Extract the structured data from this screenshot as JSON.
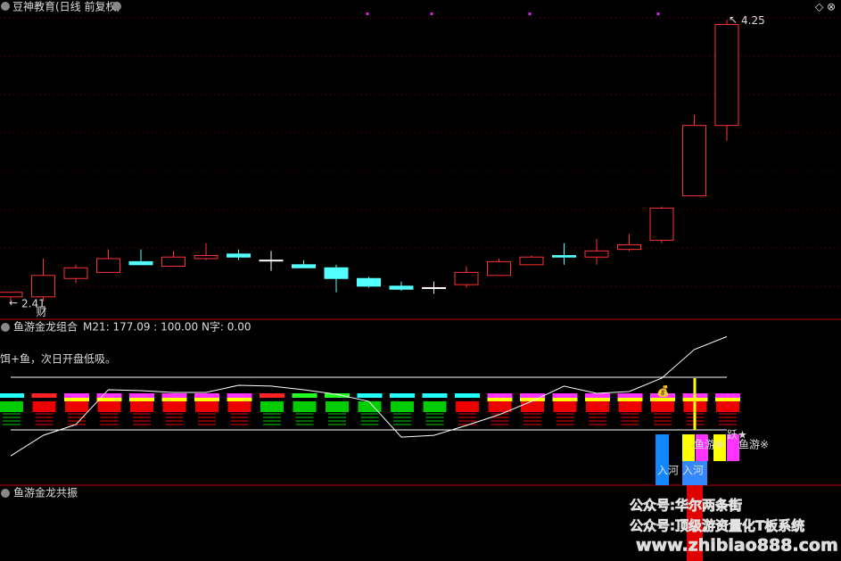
{
  "chart_data": [
    {
      "type": "candlestick",
      "title": "豆神教育(日线 前复权)",
      "open": [
        2.44,
        2.44,
        2.56,
        2.6,
        2.67,
        2.64,
        2.69,
        2.72,
        2.68,
        2.65,
        2.63,
        2.56,
        2.51,
        2.5,
        2.52,
        2.58,
        2.65,
        2.71,
        2.7,
        2.75,
        2.81,
        3.1,
        3.56
      ],
      "high": [
        2.47,
        2.69,
        2.65,
        2.75,
        2.75,
        2.74,
        2.79,
        2.75,
        2.74,
        2.68,
        2.65,
        2.57,
        2.54,
        2.54,
        2.64,
        2.69,
        2.71,
        2.79,
        2.82,
        2.85,
        3.03,
        3.63,
        4.25
      ],
      "low": [
        2.41,
        2.41,
        2.53,
        2.6,
        2.65,
        2.64,
        2.68,
        2.68,
        2.61,
        2.63,
        2.47,
        2.5,
        2.48,
        2.46,
        2.5,
        2.58,
        2.65,
        2.65,
        2.65,
        2.74,
        2.79,
        3.1,
        3.46
      ],
      "close": [
        2.47,
        2.58,
        2.63,
        2.69,
        2.65,
        2.7,
        2.71,
        2.7,
        2.68,
        2.63,
        2.56,
        2.51,
        2.49,
        2.5,
        2.6,
        2.67,
        2.7,
        2.7,
        2.74,
        2.78,
        3.02,
        3.56,
        4.22
      ],
      "up_color": "#ff3232",
      "down_color": "#54ffff",
      "ylim": [
        2.34,
        4.31
      ],
      "annotation": "财"
    },
    {
      "type": "line",
      "title": "鱼游金龙组合",
      "legend_text": "M21: 177.09 : 100.00 N字: 0.00",
      "subtitle": "饵+鱼，次日开盘低吸。",
      "series": [
        {
          "name": "M21",
          "color": "#ffffff",
          "values": [
            -49.2,
            -10.2,
            10.2,
            76.3,
            74.6,
            71.2,
            71.2,
            84.7,
            83.1,
            76.3,
            67.8,
            54.2,
            -13.6,
            -10.2,
            8.5,
            28.8,
            54.2,
            83.1,
            69.5,
            72.9,
            98.3,
            152.5,
            177.09
          ]
        }
      ],
      "ref_lines": [
        100,
        0
      ],
      "ylim": [
        -98,
        198
      ],
      "annotations": [
        "入河",
        "入河",
        "鱼游※",
        "鱼游※",
        "跃★"
      ]
    },
    {
      "type": "indicator",
      "title": "鱼游金龙共振"
    }
  ],
  "watermarks": [
    "公众号:华尔两条街",
    "公众号:顶级游资量化T板系统",
    "www.zhibiao888.com"
  ]
}
